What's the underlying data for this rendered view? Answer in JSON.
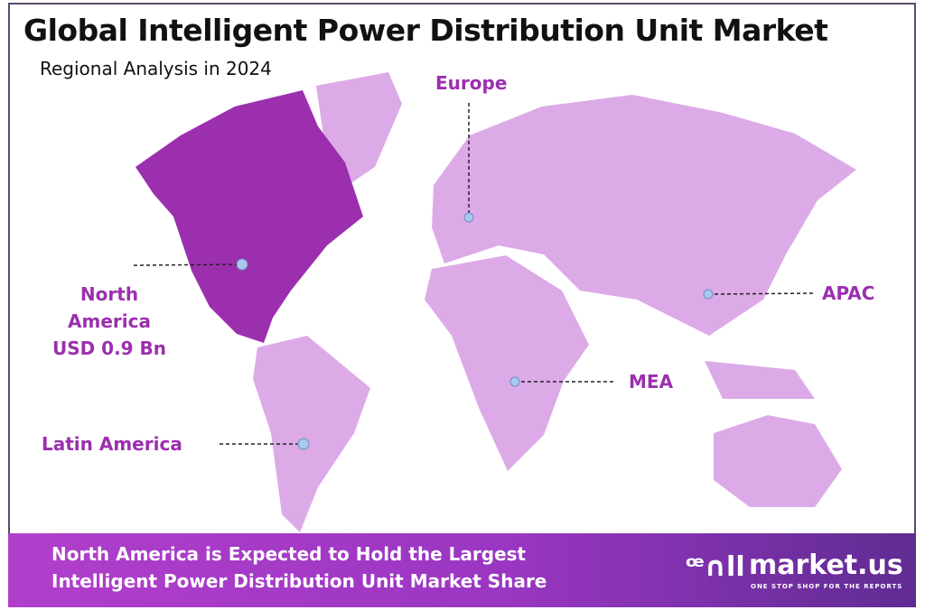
{
  "header": {
    "title": "Global Intelligent Power Distribution Unit Market",
    "subtitle": "Regional Analysis in 2024"
  },
  "regions": [
    {
      "name": "North America",
      "value": "USD 0.9 Bn",
      "highlighted": true
    },
    {
      "name": "Europe"
    },
    {
      "name": "APAC"
    },
    {
      "name": "MEA"
    },
    {
      "name": "Latin America"
    }
  ],
  "labels": {
    "na_line1": "North",
    "na_line2": "America",
    "na_value": "USD 0.9 Bn",
    "europe": "Europe",
    "apac": "APAC",
    "mea": "MEA",
    "latam": "Latin America"
  },
  "footer": {
    "line1": "North America is Expected to Hold the Largest",
    "line2": "Intelligent Power Distribution Unit Market Share"
  },
  "logo": {
    "name": "market.us",
    "tagline": "ONE STOP SHOP FOR THE REPORTS"
  },
  "colors": {
    "highlight": "#9b2fae",
    "land": "#ddaae8",
    "label": "#9b2fae",
    "marker": "#a9c8ec"
  }
}
